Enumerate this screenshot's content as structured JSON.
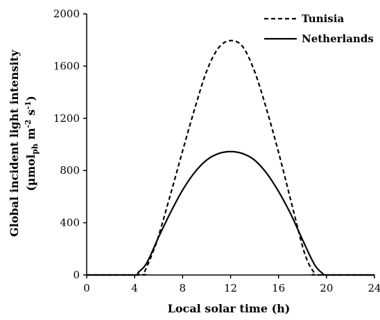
{
  "chart_data": {
    "type": "line",
    "xlabel": "Local solar time (h)",
    "ylabel_line1": "Global incident light intensity",
    "ylabel_line2": {
      "prefix": "(µmol",
      "sub": "ph",
      "mid": " m",
      "sup1": "-2",
      "mid2": " s",
      "sup2": "-1",
      "suffix": ")"
    },
    "xlim": [
      0,
      24
    ],
    "ylim": [
      0,
      2000
    ],
    "xticks": [
      0,
      4,
      8,
      12,
      16,
      20,
      24
    ],
    "yticks": [
      0,
      400,
      800,
      1200,
      1600,
      2000
    ],
    "grid": false,
    "legend_position": "top-right",
    "series": [
      {
        "name": "Tunisia",
        "style": "dashed",
        "color": "#000000",
        "x": [
          0,
          4.5,
          4.8,
          5.5,
          6,
          7,
          8,
          9,
          10,
          11,
          12,
          13,
          14,
          15,
          16,
          17,
          18,
          18.5,
          19,
          19.2,
          24
        ],
        "y": [
          0,
          0,
          20,
          170,
          300,
          620,
          950,
          1270,
          1560,
          1740,
          1795,
          1750,
          1560,
          1270,
          940,
          580,
          220,
          90,
          15,
          0,
          0
        ]
      },
      {
        "name": "Netherlands",
        "style": "solid",
        "color": "#000000",
        "x": [
          0,
          4,
          4.3,
          5,
          6,
          7,
          8,
          9,
          10,
          11,
          12,
          13,
          14,
          15,
          16,
          17,
          18,
          19,
          19.7,
          20,
          24
        ],
        "y": [
          0,
          0,
          20,
          90,
          290,
          480,
          650,
          785,
          880,
          930,
          945,
          930,
          880,
          780,
          640,
          470,
          270,
          80,
          10,
          0,
          0
        ]
      }
    ]
  }
}
